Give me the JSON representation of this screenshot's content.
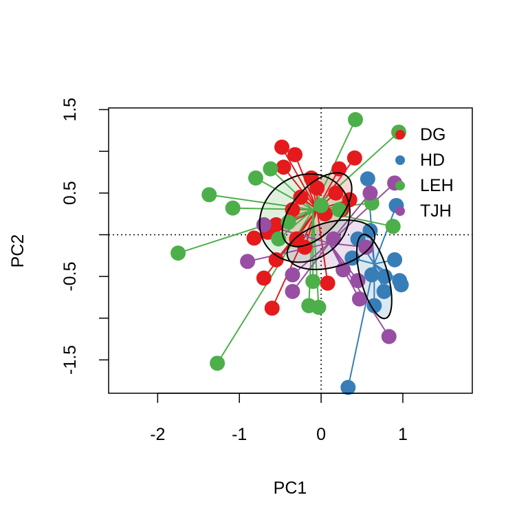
{
  "chart_data": {
    "type": "scatter",
    "xlabel": "PC1",
    "ylabel": "PC2",
    "xlim": [
      -2.6,
      1.85
    ],
    "ylim": [
      -1.9,
      1.52
    ],
    "x_ticks": [
      -2,
      -1,
      0,
      1
    ],
    "x_tick_labels": [
      "-2",
      "-1",
      "0",
      "1"
    ],
    "y_ticks": [
      -1.5,
      -1.0,
      -0.5,
      0.0,
      0.5,
      1.0,
      1.5
    ],
    "y_tick_labels": [
      "-1.5",
      "",
      "-0.5",
      "",
      "0.5",
      "",
      "1.5"
    ],
    "reference_lines": {
      "x": 0,
      "y": 0,
      "style": "dotted"
    },
    "legend_placement": "top-right",
    "series": [
      {
        "name": "DG",
        "color": "#E41A1C",
        "centroid": [
          -0.05,
          0.3
        ],
        "ellipse": {
          "cx": -0.05,
          "cy": 0.3,
          "rx": 0.55,
          "ry": 0.28,
          "angle_deg": 48,
          "fill": "#E41A1C"
        },
        "points": [
          [
            -0.48,
            1.05
          ],
          [
            -0.32,
            0.96
          ],
          [
            -0.46,
            0.81
          ],
          [
            0.22,
            0.79
          ],
          [
            0.41,
            0.92
          ],
          [
            -0.12,
            0.68
          ],
          [
            -0.05,
            0.56
          ],
          [
            -0.25,
            0.45
          ],
          [
            0.18,
            0.5
          ],
          [
            0.35,
            0.42
          ],
          [
            -0.35,
            0.3
          ],
          [
            -0.55,
            0.12
          ],
          [
            -0.65,
            0.03
          ],
          [
            -0.82,
            -0.04
          ],
          [
            -0.3,
            -0.05
          ],
          [
            0.05,
            0.25
          ],
          [
            -0.55,
            -0.3
          ],
          [
            -0.7,
            -0.52
          ],
          [
            -0.6,
            -0.88
          ],
          [
            0.08,
            -0.58
          ],
          [
            -0.2,
            -0.15
          ],
          [
            0.25,
            0.3
          ]
        ]
      },
      {
        "name": "HD",
        "color": "#377EB8",
        "centroid": [
          0.65,
          -0.35
        ],
        "ellipse": {
          "cx": 0.65,
          "cy": -0.5,
          "rx": 0.17,
          "ry": 0.52,
          "angle_deg": 15,
          "fill": "#377EB8"
        },
        "points": [
          [
            0.57,
            0.67
          ],
          [
            0.92,
            0.35
          ],
          [
            0.6,
            0.05
          ],
          [
            0.45,
            -0.05
          ],
          [
            0.38,
            -0.28
          ],
          [
            0.9,
            -0.3
          ],
          [
            0.62,
            -0.48
          ],
          [
            0.78,
            -0.5
          ],
          [
            0.96,
            -0.55
          ],
          [
            0.98,
            -0.6
          ],
          [
            0.77,
            -0.68
          ],
          [
            0.65,
            -0.85
          ],
          [
            0.33,
            -1.83
          ]
        ]
      },
      {
        "name": "LEH",
        "color": "#4DAF4A",
        "centroid": [
          -0.1,
          0.3
        ],
        "ellipse": {
          "cx": -0.2,
          "cy": 0.2,
          "rx": 0.58,
          "ry": 0.5,
          "angle_deg": 40,
          "fill": "#4DAF4A"
        },
        "points": [
          [
            0.42,
            1.38
          ],
          [
            0.95,
            1.23
          ],
          [
            -0.62,
            0.79
          ],
          [
            -0.8,
            0.68
          ],
          [
            -1.37,
            0.48
          ],
          [
            -1.08,
            0.32
          ],
          [
            0.62,
            0.38
          ],
          [
            0.88,
            0.1
          ],
          [
            0.0,
            0.35
          ],
          [
            0.22,
            0.3
          ],
          [
            -0.52,
            -0.05
          ],
          [
            -0.4,
            0.15
          ],
          [
            -1.75,
            -0.22
          ],
          [
            -0.1,
            -0.56
          ],
          [
            -0.15,
            -0.85
          ],
          [
            -0.03,
            -0.87
          ],
          [
            -1.27,
            -1.54
          ]
        ]
      },
      {
        "name": "TJH",
        "color": "#984EA3",
        "centroid": [
          0.1,
          -0.1
        ],
        "ellipse": {
          "cx": 0.12,
          "cy": -0.12,
          "rx": 0.55,
          "ry": 0.27,
          "angle_deg": 15,
          "fill": "#984EA3"
        },
        "points": [
          [
            0.9,
            0.62
          ],
          [
            0.6,
            0.5
          ],
          [
            -0.9,
            -0.32
          ],
          [
            -0.35,
            -0.48
          ],
          [
            -0.35,
            -0.68
          ],
          [
            0.45,
            -0.55
          ],
          [
            0.47,
            -0.77
          ],
          [
            0.83,
            -1.22
          ],
          [
            0.27,
            -0.42
          ],
          [
            0.15,
            -0.05
          ],
          [
            0.55,
            -0.15
          ],
          [
            -0.7,
            0.12
          ]
        ]
      }
    ]
  }
}
